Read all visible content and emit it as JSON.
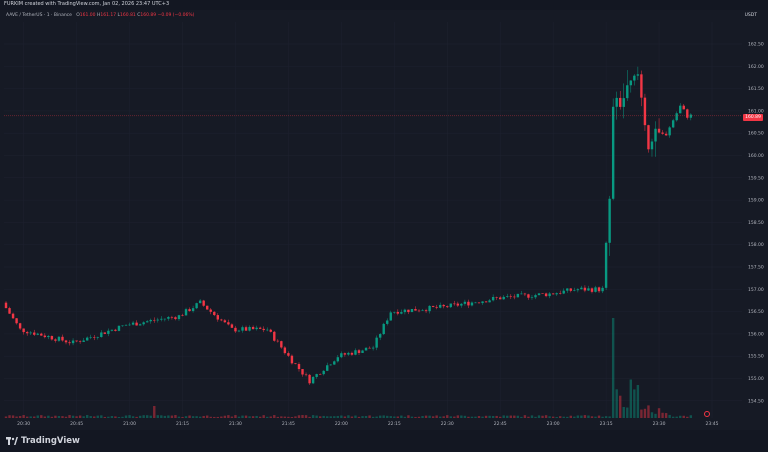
{
  "caption": "FURKIM created with TradingView.com, Jan 02, 2026 23:47 UTC+3",
  "legend": {
    "symbol": "AAVE / TetherUS · 1 · Binance",
    "o_label": "O",
    "o_value": "161.00",
    "h_label": "H",
    "h_value": "161.17",
    "l_label": "L",
    "l_value": "160.81",
    "c_label": "C",
    "c_value": "160.89",
    "change": "−0.09 (−0.06%)"
  },
  "currency": "USDT",
  "last_price": "160.89",
  "branding": "TradingView",
  "colors": {
    "up": "#089981",
    "down": "#f23645",
    "background": "#161a25",
    "grid": "#1e2230"
  },
  "chart_data": {
    "type": "candlestick",
    "symbol": "AAVE / TetherUS",
    "interval": "1",
    "exchange": "Binance",
    "price_axis_ticks": [
      162.5,
      162.0,
      161.5,
      161.0,
      160.5,
      160.0,
      159.5,
      159.0,
      158.5,
      158.0,
      157.5,
      157.0,
      156.5,
      156.0,
      155.5,
      155.0,
      154.5
    ],
    "time_axis_ticks": [
      "20:30",
      "20:45",
      "21:00",
      "21:15",
      "21:30",
      "21:45",
      "22:00",
      "22:15",
      "22:30",
      "22:45",
      "23:00",
      "23:15",
      "23:30",
      "23:45"
    ],
    "ylim": [
      154.2,
      162.9
    ],
    "last_price": 160.89,
    "key_points": [
      {
        "time": "20:25",
        "price": 156.7
      },
      {
        "time": "20:30",
        "price": 156.1
      },
      {
        "time": "20:45",
        "price": 155.8
      },
      {
        "time": "21:00",
        "price": 156.2
      },
      {
        "time": "21:15",
        "price": 156.4
      },
      {
        "time": "21:21",
        "price": 156.7
      },
      {
        "time": "21:30",
        "price": 156.1
      },
      {
        "time": "21:40",
        "price": 156.1
      },
      {
        "time": "21:47",
        "price": 155.4
      },
      {
        "time": "21:52",
        "price": 154.95
      },
      {
        "time": "22:00",
        "price": 155.5
      },
      {
        "time": "22:10",
        "price": 155.7
      },
      {
        "time": "22:15",
        "price": 156.5
      },
      {
        "time": "22:30",
        "price": 156.6
      },
      {
        "time": "22:45",
        "price": 156.8
      },
      {
        "time": "23:00",
        "price": 156.9
      },
      {
        "time": "23:08",
        "price": 157.0
      },
      {
        "time": "23:15",
        "price": 157.0
      },
      {
        "time": "23:17",
        "price": 159.0
      },
      {
        "time": "23:18",
        "price": 161.0
      },
      {
        "time": "23:21",
        "price": 161.3
      },
      {
        "time": "23:25",
        "price": 161.8
      },
      {
        "time": "23:28",
        "price": 160.3
      },
      {
        "time": "23:33",
        "price": 160.5
      },
      {
        "time": "23:37",
        "price": 161.1
      },
      {
        "time": "23:39",
        "price": 160.89
      }
    ]
  }
}
